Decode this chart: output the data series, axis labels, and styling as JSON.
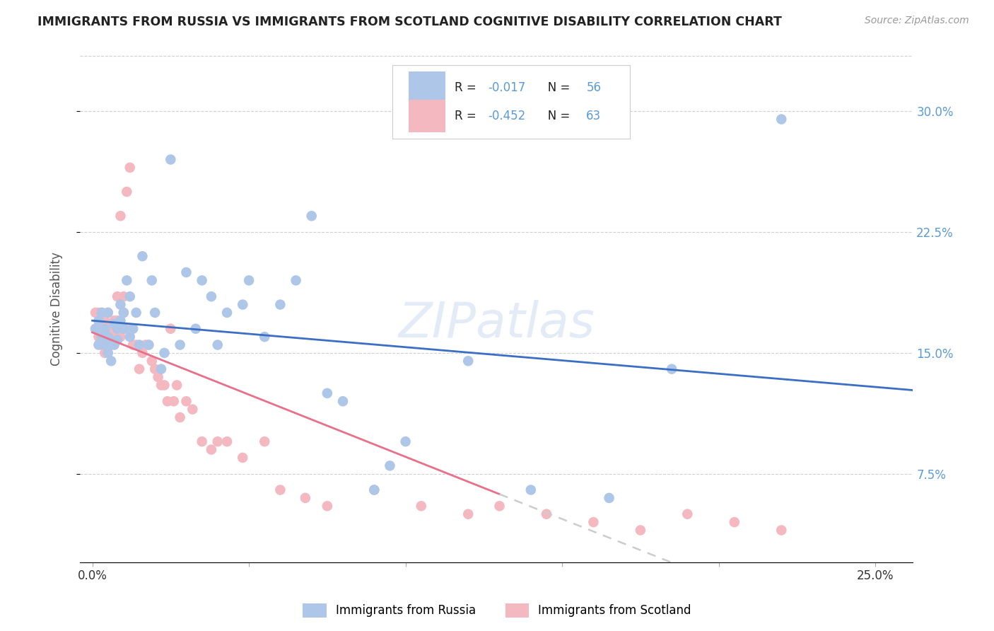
{
  "title": "IMMIGRANTS FROM RUSSIA VS IMMIGRANTS FROM SCOTLAND COGNITIVE DISABILITY CORRELATION CHART",
  "source": "Source: ZipAtlas.com",
  "ylabel": "Cognitive Disability",
  "xlim": [
    -0.004,
    0.262
  ],
  "ylim": [
    0.02,
    0.335
  ],
  "russia_color": "#aec6e8",
  "scotland_color": "#f4b8c1",
  "russia_line_color": "#3a6fc4",
  "scotland_line_color": "#e8708a",
  "russia_R": -0.017,
  "russia_N": 56,
  "scotland_R": -0.452,
  "scotland_N": 63,
  "watermark": "ZIPatlas",
  "legend_text_color": "#5b9bd5",
  "legend_label_color": "#222222",
  "russia_x": [
    0.001,
    0.002,
    0.002,
    0.003,
    0.003,
    0.004,
    0.004,
    0.005,
    0.005,
    0.005,
    0.006,
    0.006,
    0.007,
    0.007,
    0.008,
    0.008,
    0.009,
    0.009,
    0.01,
    0.01,
    0.011,
    0.012,
    0.012,
    0.013,
    0.014,
    0.015,
    0.016,
    0.018,
    0.019,
    0.02,
    0.022,
    0.023,
    0.025,
    0.028,
    0.03,
    0.033,
    0.035,
    0.038,
    0.04,
    0.043,
    0.048,
    0.05,
    0.055,
    0.06,
    0.065,
    0.07,
    0.075,
    0.08,
    0.09,
    0.095,
    0.1,
    0.12,
    0.14,
    0.165,
    0.185,
    0.22
  ],
  "russia_y": [
    0.165,
    0.155,
    0.17,
    0.16,
    0.175,
    0.155,
    0.165,
    0.15,
    0.16,
    0.175,
    0.145,
    0.155,
    0.168,
    0.155,
    0.165,
    0.158,
    0.18,
    0.17,
    0.175,
    0.165,
    0.195,
    0.16,
    0.185,
    0.165,
    0.175,
    0.155,
    0.21,
    0.155,
    0.195,
    0.175,
    0.14,
    0.15,
    0.27,
    0.155,
    0.2,
    0.165,
    0.195,
    0.185,
    0.155,
    0.175,
    0.18,
    0.195,
    0.16,
    0.18,
    0.195,
    0.235,
    0.125,
    0.12,
    0.065,
    0.08,
    0.095,
    0.145,
    0.065,
    0.06,
    0.14,
    0.295
  ],
  "scotland_x": [
    0.001,
    0.001,
    0.002,
    0.002,
    0.003,
    0.003,
    0.003,
    0.004,
    0.004,
    0.004,
    0.005,
    0.005,
    0.005,
    0.006,
    0.006,
    0.007,
    0.007,
    0.008,
    0.008,
    0.009,
    0.009,
    0.01,
    0.01,
    0.011,
    0.011,
    0.012,
    0.013,
    0.014,
    0.015,
    0.016,
    0.017,
    0.018,
    0.019,
    0.02,
    0.021,
    0.022,
    0.023,
    0.024,
    0.025,
    0.026,
    0.027,
    0.028,
    0.03,
    0.032,
    0.035,
    0.038,
    0.04,
    0.043,
    0.048,
    0.055,
    0.06,
    0.068,
    0.075,
    0.09,
    0.105,
    0.12,
    0.13,
    0.145,
    0.16,
    0.175,
    0.19,
    0.205,
    0.22
  ],
  "scotland_y": [
    0.175,
    0.165,
    0.175,
    0.16,
    0.175,
    0.165,
    0.155,
    0.17,
    0.16,
    0.15,
    0.175,
    0.165,
    0.155,
    0.165,
    0.155,
    0.17,
    0.16,
    0.185,
    0.17,
    0.235,
    0.16,
    0.185,
    0.175,
    0.25,
    0.165,
    0.265,
    0.155,
    0.155,
    0.14,
    0.15,
    0.155,
    0.155,
    0.145,
    0.14,
    0.135,
    0.13,
    0.13,
    0.12,
    0.165,
    0.12,
    0.13,
    0.11,
    0.12,
    0.115,
    0.095,
    0.09,
    0.095,
    0.095,
    0.085,
    0.095,
    0.065,
    0.06,
    0.055,
    0.065,
    0.055,
    0.05,
    0.055,
    0.05,
    0.045,
    0.04,
    0.05,
    0.045,
    0.04
  ],
  "x_tick_positions": [
    0.0,
    0.05,
    0.1,
    0.15,
    0.2,
    0.25
  ],
  "x_tick_labels": [
    "0.0%",
    "",
    "",
    "",
    "",
    "25.0%"
  ],
  "y_tick_positions": [
    0.075,
    0.15,
    0.225,
    0.3
  ],
  "y_tick_labels": [
    "7.5%",
    "15.0%",
    "22.5%",
    "30.0%"
  ]
}
